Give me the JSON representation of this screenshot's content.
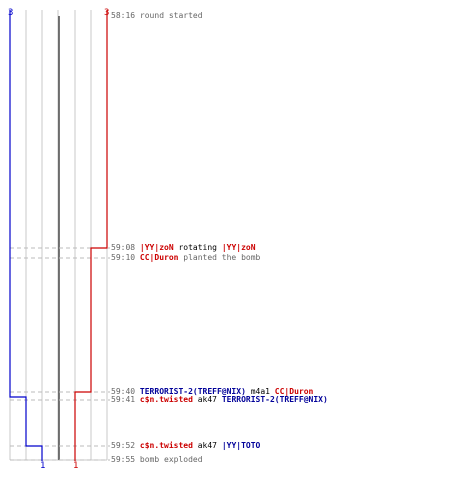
{
  "colors": {
    "red_team": "#cc0000",
    "blue_team": "#0000cc",
    "grid": "#c8c8c8",
    "center_line": "#555555",
    "timestamp": "#666666",
    "dash": "#bbbbbb"
  },
  "teams": {
    "blue": {
      "start_count": "3",
      "end_count": "1"
    },
    "red": {
      "start_count": "3",
      "end_count": "1"
    }
  },
  "events": [
    {
      "time": "58:16",
      "parts": [
        {
          "t": "round started",
          "c": "gray"
        }
      ]
    },
    {
      "time": "59:08",
      "parts": [
        {
          "t": "|YY|zoN",
          "c": "red"
        },
        {
          "t": " rotating ",
          "c": "txt"
        },
        {
          "t": "|YY|zoN",
          "c": "red"
        }
      ]
    },
    {
      "time": "59:10",
      "parts": [
        {
          "t": "CC|Duron",
          "c": "red"
        },
        {
          "t": " planted the bomb",
          "c": "gray"
        }
      ]
    },
    {
      "time": "59:40",
      "parts": [
        {
          "t": "TERRORIST-2(TREFF@NIX)",
          "c": "blue"
        },
        {
          "t": " m4a1 ",
          "c": "txt"
        },
        {
          "t": "CC|Duron",
          "c": "red"
        }
      ]
    },
    {
      "time": "59:41",
      "parts": [
        {
          "t": "c$n.twisted",
          "c": "red"
        },
        {
          "t": " ak47 ",
          "c": "txt"
        },
        {
          "t": "TERRORIST-2(TREFF@NIX)",
          "c": "blue"
        }
      ]
    },
    {
      "time": "59:52",
      "parts": [
        {
          "t": "c$n.twisted",
          "c": "red"
        },
        {
          "t": " ak47 ",
          "c": "txt"
        },
        {
          "t": "|YY|TOTO",
          "c": "blue"
        }
      ]
    },
    {
      "time": "59:55",
      "parts": [
        {
          "t": "bomb exploded",
          "c": "gray"
        }
      ]
    }
  ]
}
